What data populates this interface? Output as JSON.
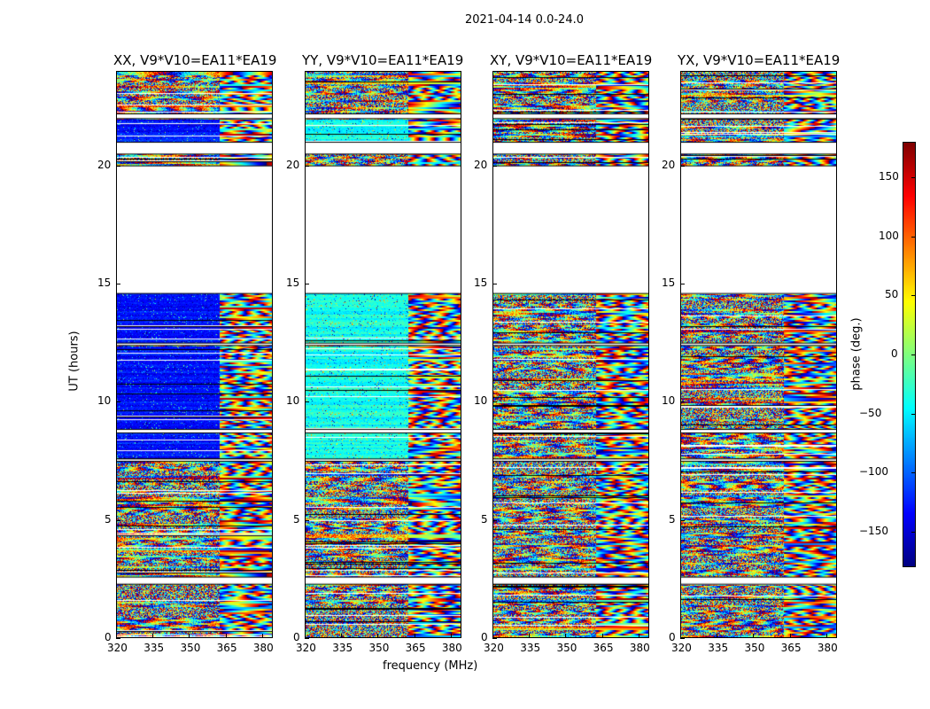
{
  "chart_data": {
    "type": "heatmap",
    "title": "2021-04-14 0.0-24.0",
    "xlabel": "frequency (MHz)",
    "ylabel": "UT (hours)",
    "xlim": [
      320,
      384.4
    ],
    "ylim": [
      0,
      24
    ],
    "xticks": [
      320,
      335,
      350,
      365,
      380
    ],
    "yticks": [
      0,
      5,
      10,
      15,
      20
    ],
    "panels": [
      {
        "title": "XX, V9*V10=EA11*EA19",
        "coherent_phase": -130
      },
      {
        "title": "YY, V9*V10=EA11*EA19",
        "coherent_phase": -40
      },
      {
        "title": "XY, V9*V10=EA11*EA19",
        "coherent_phase": null
      },
      {
        "title": "YX, V9*V10=EA11*EA19",
        "coherent_phase": null
      }
    ],
    "data_time_ranges_hours": [
      [
        0,
        2.3
      ],
      [
        2.6,
        7.5
      ],
      [
        7.6,
        8.7
      ],
      [
        8.85,
        12.4
      ],
      [
        12.5,
        14.6
      ],
      [
        20.0,
        20.5
      ],
      [
        21.0,
        22.0
      ],
      [
        22.2,
        24.0
      ]
    ],
    "coherent_time_ranges_hours": [
      [
        7.6,
        8.7
      ],
      [
        8.85,
        12.4
      ],
      [
        12.5,
        14.6
      ],
      [
        21.0,
        22.0
      ]
    ],
    "fringe_start_mhz": 362,
    "colorbar": {
      "label": "phase (deg.)",
      "range": [
        -180,
        180
      ],
      "ticks": [
        -150,
        -100,
        -50,
        0,
        50,
        100,
        150
      ],
      "colormap": "jet"
    }
  }
}
